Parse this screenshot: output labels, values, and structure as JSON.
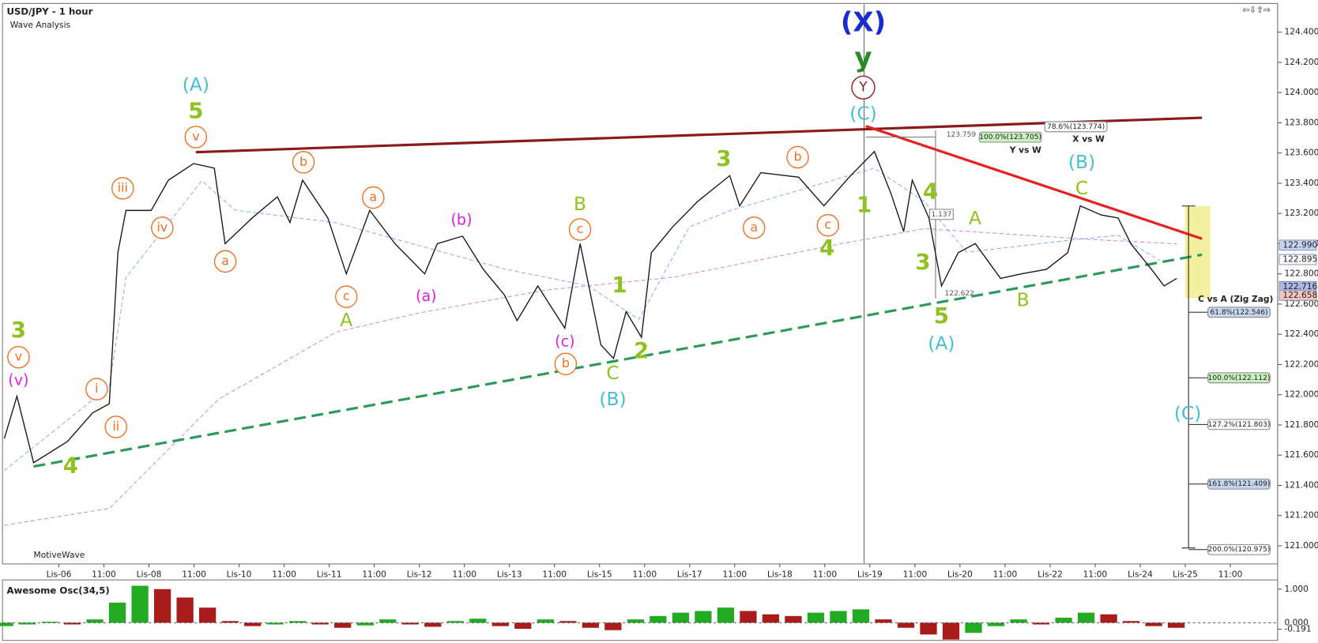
{
  "chart_data": [
    {
      "type": "line",
      "title": "USD/JPY - 1 hour",
      "subtitle": "Wave Analysis",
      "watermark": "MotiveWave",
      "x": [
        -1.21,
        -0.93,
        -0.56,
        0.19,
        0.75,
        1.12,
        1.31,
        1.49,
        2.05,
        2.43,
        2.99,
        3.45,
        3.69,
        4.29,
        4.85,
        5.13,
        5.41,
        5.97,
        6.38,
        6.9,
        7.46,
        8.12,
        8.4,
        8.96,
        9.42,
        9.89,
        10.17,
        10.63,
        11.23,
        11.57,
        12.03,
        12.31,
        12.59,
        12.93,
        13.15,
        13.62,
        14.18,
        14.89,
        15.11,
        15.58,
        16.42,
        16.98,
        17.54,
        18.1,
        18.47,
        18.75,
        18.94,
        19.31,
        19.59,
        19.96,
        20.34,
        20.9,
        21.36,
        21.92,
        22.39,
        22.67,
        23.13,
        23.51,
        23.79,
        24.25,
        24.53,
        24.81
      ],
      "series": [
        {
          "color": "#1a1a1a",
          "values": [
            121.71,
            121.99,
            121.55,
            121.69,
            121.88,
            121.94,
            122.94,
            123.22,
            123.22,
            123.42,
            123.53,
            123.5,
            123.0,
            123.17,
            123.31,
            123.14,
            123.42,
            123.17,
            122.8,
            123.22,
            123.0,
            122.8,
            123.0,
            123.05,
            122.83,
            122.66,
            122.49,
            122.72,
            122.44,
            123.0,
            122.33,
            122.24,
            122.55,
            122.38,
            122.94,
            123.11,
            123.28,
            123.45,
            123.25,
            123.47,
            123.44,
            123.25,
            123.44,
            123.61,
            123.33,
            123.08,
            123.42,
            123.17,
            122.72,
            122.94,
            123.0,
            122.77,
            122.8,
            122.83,
            122.94,
            123.25,
            123.19,
            123.17,
            123.0,
            122.83,
            122.72,
            122.77
          ]
        }
      ],
      "xlim": [
        -1.25,
        27.05
      ],
      "xticks": [
        {
          "value": 0,
          "label": "Lis-06"
        },
        {
          "value": 1,
          "label": "11:00"
        },
        {
          "value": 2,
          "label": "Lis-08"
        },
        {
          "value": 3,
          "label": "11:00"
        },
        {
          "value": 4,
          "label": "Lis-10"
        },
        {
          "value": 5,
          "label": "11:00"
        },
        {
          "value": 6,
          "label": "Lis-11"
        },
        {
          "value": 7,
          "label": "11:00"
        },
        {
          "value": 8,
          "label": "Lis-12"
        },
        {
          "value": 9,
          "label": "11:00"
        },
        {
          "value": 10,
          "label": "Lis-13"
        },
        {
          "value": 11,
          "label": "11:00"
        },
        {
          "value": 12,
          "label": "Lis-15"
        },
        {
          "value": 13,
          "label": "11:00"
        },
        {
          "value": 14,
          "label": "Lis-17"
        },
        {
          "value": 15,
          "label": "11:00"
        },
        {
          "value": 16,
          "label": "Lis-18"
        },
        {
          "value": 17,
          "label": "11:00"
        },
        {
          "value": 18,
          "label": "Lis-19"
        },
        {
          "value": 19,
          "label": "11:00"
        },
        {
          "value": 20,
          "label": "Lis-20"
        },
        {
          "value": 21,
          "label": "11:00"
        },
        {
          "value": 22,
          "label": "Lis-22"
        },
        {
          "value": 23,
          "label": "11:00"
        },
        {
          "value": 24,
          "label": "Lis-24"
        },
        {
          "value": 25,
          "label": "Lis-25"
        },
        {
          "value": 26,
          "label": "11:00"
        }
      ],
      "ylim": [
        120.88,
        124.59
      ],
      "yticks": [
        {
          "value": 121.0,
          "label": "121.000"
        },
        {
          "value": 121.2,
          "label": "121.200"
        },
        {
          "value": 121.4,
          "label": "121.400"
        },
        {
          "value": 121.6,
          "label": "121.600"
        },
        {
          "value": 121.8,
          "label": "121.800"
        },
        {
          "value": 122.0,
          "label": "122.000"
        },
        {
          "value": 122.2,
          "label": "122.200"
        },
        {
          "value": 122.4,
          "label": "122.400"
        },
        {
          "value": 122.6,
          "label": "122.600"
        },
        {
          "value": 122.8,
          "label": "122.800"
        },
        {
          "value": 123.0,
          "label": "123.000"
        },
        {
          "value": 123.2,
          "label": "123.200"
        },
        {
          "value": 123.4,
          "label": "123.400"
        },
        {
          "value": 123.6,
          "label": "123.600"
        },
        {
          "value": 123.8,
          "label": "123.800"
        },
        {
          "value": 124.0,
          "label": "124.000"
        },
        {
          "value": 124.2,
          "label": "124.200"
        },
        {
          "value": 124.4,
          "label": "124.400"
        }
      ],
      "price_markers": [
        {
          "value": 122.99,
          "label": "122.990",
          "color": "#c6d4ee"
        },
        {
          "value": 122.895,
          "label": "122.895",
          "color": "#ffffff"
        },
        {
          "value": 122.716,
          "label": "122.716",
          "color": "#a9b8e6"
        },
        {
          "value": 122.658,
          "label": "122.658",
          "color": "#f2c6c0"
        }
      ],
      "fib_levels": [
        {
          "value": 122.546,
          "label": "61.8%(122.546)",
          "color": "#c6d4ee"
        },
        {
          "value": 122.112,
          "label": "100.0%(122.112)",
          "color": "#c8f0c0"
        },
        {
          "value": 121.803,
          "label": "127.2%(121.803)",
          "color": "#ffffff"
        },
        {
          "value": 121.409,
          "label": "161.8%(121.409)",
          "color": "#c6d4ee"
        },
        {
          "value": 120.975,
          "label": "200.0%(120.975)",
          "color": "#ffffff"
        },
        {
          "value": 123.774,
          "label": "78.6%(123.774)",
          "color": "#ffffff"
        },
        {
          "value": 123.705,
          "label": "100.0%(123.705)",
          "color": "#c8f0c0"
        }
      ],
      "annotations": [
        "C vs A (Zig Zag)",
        "X vs W",
        "Y vs W",
        "123.759",
        "1.137",
        "122.622"
      ],
      "wave_labels": [
        {
          "text": "(X)",
          "color": "#1a2dcc"
        },
        {
          "text": "y",
          "color": "#2a8a2a"
        },
        {
          "text": "Y",
          "color": "#8b1a1a",
          "circled": true
        },
        {
          "text": "(C)",
          "color": "#45c0d0"
        },
        {
          "text": "(A)",
          "color": "#45c0d0"
        },
        {
          "text": "5",
          "color": "#8dc21f"
        },
        {
          "text": "v",
          "color": "#f07020",
          "circled": true
        },
        {
          "text": "iii",
          "color": "#f07020",
          "circled": true
        },
        {
          "text": "iv",
          "color": "#f07020",
          "circled": true
        },
        {
          "text": "a",
          "color": "#f07020",
          "circled": true
        },
        {
          "text": "b",
          "color": "#f07020",
          "circled": true
        },
        {
          "text": "a",
          "color": "#f07020",
          "circled": true
        },
        {
          "text": "c",
          "color": "#f07020",
          "circled": true
        },
        {
          "text": "A",
          "color": "#8dc21f"
        },
        {
          "text": "(b)",
          "color": "#e020e0"
        },
        {
          "text": "(a)",
          "color": "#e020e0"
        },
        {
          "text": "B",
          "color": "#8dc21f"
        },
        {
          "text": "c",
          "color": "#f07020",
          "circled": true
        },
        {
          "text": "(c)",
          "color": "#e020e0"
        },
        {
          "text": "b",
          "color": "#f07020",
          "circled": true
        },
        {
          "text": "C",
          "color": "#8dc21f"
        },
        {
          "text": "(B)",
          "color": "#45c0d0"
        },
        {
          "text": "1",
          "color": "#8dc21f"
        },
        {
          "text": "2",
          "color": "#8dc21f"
        },
        {
          "text": "3",
          "color": "#8dc21f"
        },
        {
          "text": "a",
          "color": "#f07020",
          "circled": true
        },
        {
          "text": "b",
          "color": "#f07020",
          "circled": true
        },
        {
          "text": "c",
          "color": "#f07020",
          "circled": true
        },
        {
          "text": "4",
          "color": "#8dc21f"
        },
        {
          "text": "1",
          "color": "#8dc21f"
        },
        {
          "text": "4",
          "color": "#8dc21f"
        },
        {
          "text": "3",
          "color": "#8dc21f"
        },
        {
          "text": "5",
          "color": "#8dc21f"
        },
        {
          "text": "(A)",
          "color": "#45c0d0"
        },
        {
          "text": "A",
          "color": "#8dc21f"
        },
        {
          "text": "B",
          "color": "#8dc21f"
        },
        {
          "text": "(B)",
          "color": "#45c0d0"
        },
        {
          "text": "C",
          "color": "#8dc21f"
        },
        {
          "text": "(C)",
          "color": "#45c0d0"
        },
        {
          "text": "3",
          "color": "#8dc21f"
        },
        {
          "text": "v",
          "color": "#f07020",
          "circled": true
        },
        {
          "text": "(v)",
          "color": "#e020e0"
        },
        {
          "text": "i",
          "color": "#f07020",
          "circled": true
        },
        {
          "text": "ii",
          "color": "#f07020",
          "circled": true
        },
        {
          "text": "4",
          "color": "#8dc21f"
        }
      ]
    },
    {
      "type": "bar",
      "title": "Awesome Osc(34,5)",
      "up_color": "#22aa22",
      "down_color": "#a81c1c",
      "x": [
        -1.2,
        -0.7,
        -0.2,
        0.3,
        0.8,
        1.3,
        1.8,
        2.3,
        2.8,
        3.3,
        3.8,
        4.3,
        4.8,
        5.3,
        5.8,
        6.3,
        6.8,
        7.3,
        7.8,
        8.3,
        8.8,
        9.3,
        9.8,
        10.3,
        10.8,
        11.3,
        11.8,
        12.3,
        12.8,
        13.3,
        13.8,
        14.3,
        14.8,
        15.3,
        15.8,
        16.3,
        16.8,
        17.3,
        17.8,
        18.3,
        18.8,
        19.3,
        19.8,
        20.3,
        20.8,
        21.3,
        21.8,
        22.3,
        22.8,
        23.3,
        23.8,
        24.3,
        24.8
      ],
      "values": [
        -0.1,
        -0.05,
        0.03,
        -0.05,
        0.1,
        0.6,
        1.1,
        1.0,
        0.75,
        0.45,
        0.05,
        -0.1,
        -0.05,
        0.05,
        -0.05,
        -0.15,
        -0.08,
        0.1,
        -0.05,
        -0.12,
        0.05,
        0.12,
        -0.1,
        -0.18,
        0.1,
        0.05,
        -0.15,
        -0.22,
        0.1,
        0.2,
        0.3,
        0.35,
        0.45,
        0.35,
        0.25,
        0.2,
        0.3,
        0.35,
        0.4,
        0.1,
        -0.15,
        -0.35,
        -0.5,
        -0.3,
        -0.1,
        0.1,
        -0.05,
        0.15,
        0.3,
        0.25,
        0.05,
        -0.1,
        -0.15
      ],
      "ylim": [
        -0.525,
        1.275
      ],
      "yticks": [
        {
          "value": 1,
          "label": "1.000"
        },
        {
          "value": 0,
          "label": "0.000"
        },
        {
          "value": -0.191,
          "label": "-0.191"
        }
      ]
    }
  ]
}
